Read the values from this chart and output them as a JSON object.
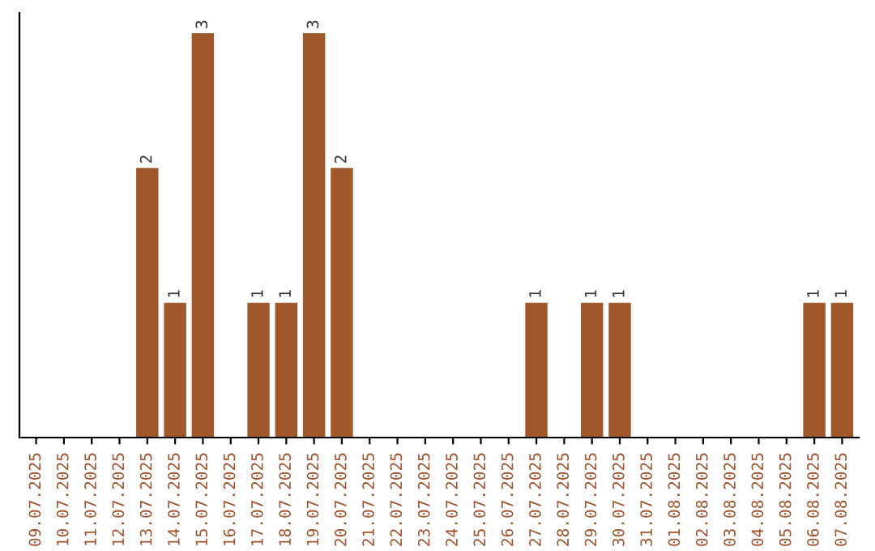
{
  "chart_data": {
    "type": "bar",
    "categories": [
      "09.07.2025",
      "10.07.2025",
      "11.07.2025",
      "12.07.2025",
      "13.07.2025",
      "14.07.2025",
      "15.07.2025",
      "16.07.2025",
      "17.07.2025",
      "18.07.2025",
      "19.07.2025",
      "20.07.2025",
      "21.07.2025",
      "22.07.2025",
      "23.07.2025",
      "24.07.2025",
      "25.07.2025",
      "26.07.2025",
      "27.07.2025",
      "28.07.2025",
      "29.07.2025",
      "30.07.2025",
      "31.07.2025",
      "01.08.2025",
      "02.08.2025",
      "03.08.2025",
      "04.08.2025",
      "05.08.2025",
      "06.08.2025",
      "07.08.2025"
    ],
    "values": [
      0,
      0,
      0,
      0,
      2,
      1,
      3,
      0,
      1,
      1,
      3,
      2,
      0,
      0,
      0,
      0,
      0,
      0,
      1,
      0,
      1,
      1,
      0,
      0,
      0,
      0,
      0,
      0,
      1,
      1
    ],
    "value_labels": [
      null,
      null,
      null,
      null,
      "2",
      "1",
      "3",
      null,
      "1",
      "1",
      "3",
      "2",
      null,
      null,
      null,
      null,
      null,
      null,
      "1",
      null,
      "1",
      "1",
      null,
      null,
      null,
      null,
      null,
      null,
      "1",
      "1"
    ],
    "color": "#a0582a",
    "tick_labels": "x",
    "grid": false,
    "legend": false
  }
}
